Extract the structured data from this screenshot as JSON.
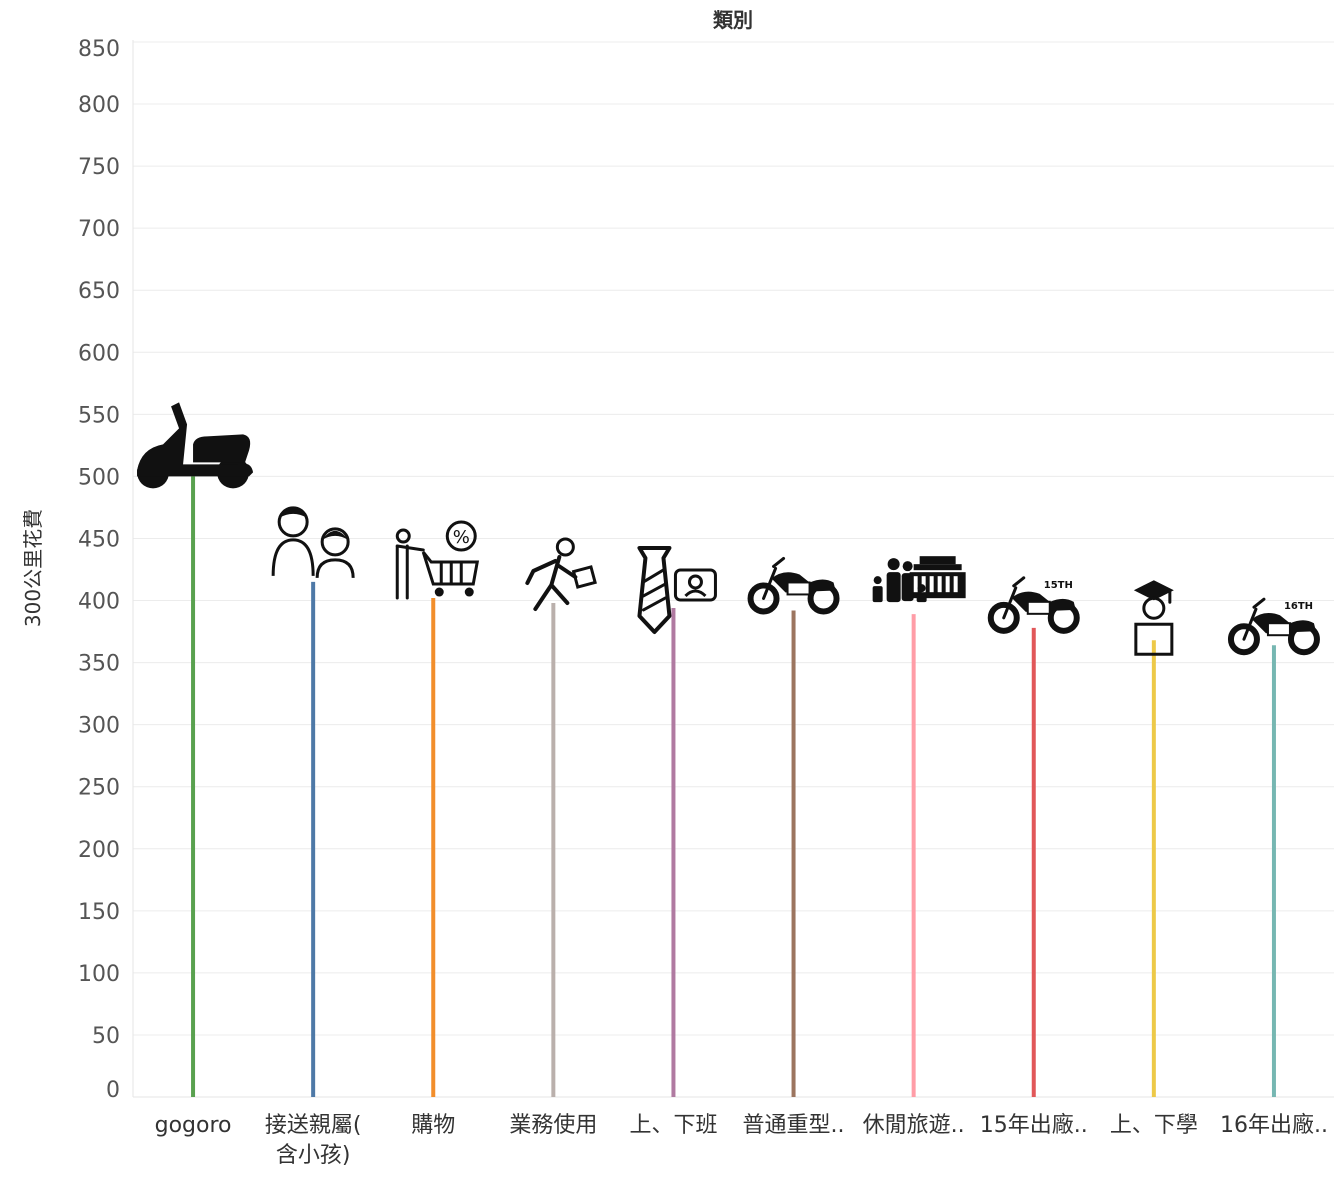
{
  "chart_data": {
    "type": "lollipop",
    "title": "類別",
    "ylabel": "300公里花費",
    "xlabel": "",
    "yticks": [
      0,
      50,
      100,
      150,
      200,
      250,
      300,
      350,
      400,
      450,
      500,
      550,
      600,
      650,
      700,
      750,
      800,
      850
    ],
    "ylim": [
      0,
      850
    ],
    "grid": true,
    "categories": [
      {
        "label": [
          "gogoro"
        ],
        "value": 500,
        "color": "#59a14f",
        "icon": "scooter-icon"
      },
      {
        "label": [
          "接送親屬(",
          "含小孩)"
        ],
        "value": 415,
        "color": "#4e79a7",
        "icon": "parent-child-icon"
      },
      {
        "label": [
          "購物"
        ],
        "value": 402,
        "color": "#f28e2b",
        "icon": "shopping-cart-icon"
      },
      {
        "label": [
          "業務使用"
        ],
        "value": 398,
        "color": "#bab0ac",
        "icon": "business-person-icon"
      },
      {
        "label": [
          "上、下班"
        ],
        "value": 394,
        "color": "#b07aa1",
        "icon": "tie-badge-icon"
      },
      {
        "label": [
          "普通重型.."
        ],
        "value": 392,
        "color": "#9c755f",
        "icon": "motorcycle-icon"
      },
      {
        "label": [
          "休閒旅遊.."
        ],
        "value": 389,
        "color": "#ff9da7",
        "icon": "family-travel-icon"
      },
      {
        "label": [
          "15年出廠.."
        ],
        "value": 378,
        "color": "#e15759",
        "icon": "motorcycle-15th-icon"
      },
      {
        "label": [
          "上、下學"
        ],
        "value": 368,
        "color": "#edc948",
        "icon": "graduate-icon"
      },
      {
        "label": [
          "16年出廠.."
        ],
        "value": 364,
        "color": "#76b7b2",
        "icon": "motorcycle-16th-icon"
      }
    ]
  }
}
